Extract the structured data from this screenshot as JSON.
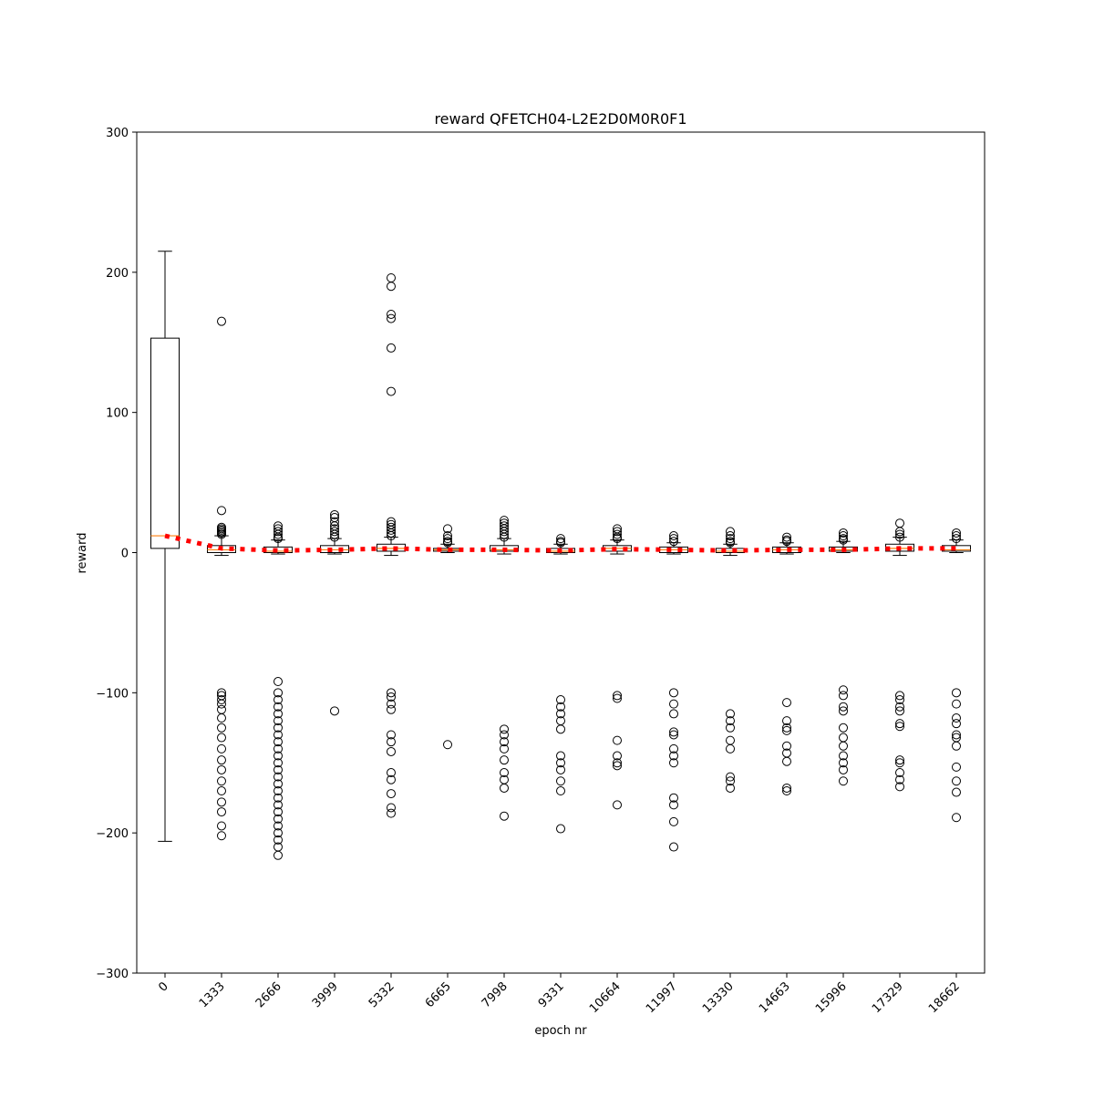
{
  "chart_data": {
    "type": "boxplot",
    "title": "reward QFETCH04-L2E2D0M0R0F1",
    "xlabel": "epoch nr",
    "ylabel": "reward",
    "ylim": [
      -300,
      300
    ],
    "yticks": [
      -300,
      -200,
      -100,
      0,
      100,
      200,
      300
    ],
    "yticklabels": [
      "−300",
      "−200",
      "−100",
      "0",
      "100",
      "200",
      "300"
    ],
    "categories": [
      "0",
      "1333",
      "2666",
      "3999",
      "5332",
      "6665",
      "7998",
      "9331",
      "10664",
      "11997",
      "13330",
      "14663",
      "15996",
      "17329",
      "18662"
    ],
    "grid": false,
    "boxes": [
      {
        "q1": 3,
        "median": 12,
        "q3": 153,
        "whislo": -206,
        "whishi": 215,
        "fliers": []
      },
      {
        "q1": 0,
        "median": 2,
        "q3": 5,
        "whislo": -2,
        "whishi": 12,
        "fliers": [
          165,
          30,
          18,
          17,
          16,
          15,
          14,
          13,
          -100,
          -102,
          -105,
          -108,
          -112,
          -118,
          -125,
          -132,
          -140,
          -148,
          -155,
          -163,
          -170,
          -178,
          -185,
          -195,
          -202
        ]
      },
      {
        "q1": 0,
        "median": 1,
        "q3": 4,
        "whislo": -1,
        "whishi": 9,
        "fliers": [
          19,
          17,
          15,
          13,
          11,
          10,
          -92,
          -100,
          -105,
          -110,
          -115,
          -120,
          -125,
          -130,
          -135,
          -140,
          -145,
          -150,
          -155,
          -160,
          -165,
          -170,
          -175,
          -180,
          -185,
          -190,
          -195,
          -200,
          -205,
          -210,
          -216
        ]
      },
      {
        "q1": 0,
        "median": 2,
        "q3": 5,
        "whislo": -1,
        "whishi": 10,
        "fliers": [
          27,
          25,
          22,
          19,
          17,
          15,
          13,
          11,
          -113
        ]
      },
      {
        "q1": 1,
        "median": 3,
        "q3": 6,
        "whislo": -2,
        "whishi": 11,
        "fliers": [
          196,
          190,
          170,
          167,
          146,
          115,
          22,
          20,
          18,
          16,
          14,
          12,
          -100,
          -103,
          -108,
          -112,
          -130,
          -135,
          -142,
          -157,
          -162,
          -172,
          -182,
          -186
        ]
      },
      {
        "q1": 1,
        "median": 2,
        "q3": 3,
        "whislo": 0,
        "whishi": 6,
        "fliers": [
          17,
          12,
          10,
          8,
          7,
          -137
        ]
      },
      {
        "q1": 1,
        "median": 2,
        "q3": 5,
        "whislo": -1,
        "whishi": 10,
        "fliers": [
          23,
          21,
          19,
          17,
          15,
          13,
          11,
          -126,
          -130,
          -135,
          -140,
          -148,
          -157,
          -162,
          -168,
          -188
        ]
      },
      {
        "q1": 0,
        "median": 1,
        "q3": 3,
        "whislo": -1,
        "whishi": 6,
        "fliers": [
          10,
          8,
          7,
          -105,
          -110,
          -115,
          -120,
          -126,
          -145,
          -150,
          -155,
          -163,
          -170,
          -197
        ]
      },
      {
        "q1": 1,
        "median": 3,
        "q3": 5,
        "whislo": -1,
        "whishi": 9,
        "fliers": [
          17,
          15,
          13,
          11,
          10,
          -102,
          -104,
          -134,
          -145,
          -150,
          -152,
          -180
        ]
      },
      {
        "q1": 0,
        "median": 2,
        "q3": 4,
        "whislo": -1,
        "whishi": 7,
        "fliers": [
          12,
          10,
          8,
          -100,
          -108,
          -115,
          -128,
          -130,
          -140,
          -145,
          -150,
          -175,
          -180,
          -192,
          -210
        ]
      },
      {
        "q1": 0,
        "median": 1,
        "q3": 3,
        "whislo": -2,
        "whishi": 6,
        "fliers": [
          15,
          12,
          10,
          8,
          7,
          -115,
          -120,
          -125,
          -134,
          -140,
          -160,
          -163,
          -168
        ]
      },
      {
        "q1": 0,
        "median": 2,
        "q3": 4,
        "whislo": -1,
        "whishi": 7,
        "fliers": [
          11,
          9,
          8,
          -107,
          -120,
          -125,
          -127,
          -138,
          -143,
          -149,
          -168,
          -170
        ]
      },
      {
        "q1": 1,
        "median": 2,
        "q3": 4,
        "whislo": 0,
        "whishi": 8,
        "fliers": [
          14,
          12,
          10,
          9,
          -98,
          -102,
          -110,
          -113,
          -125,
          -132,
          -138,
          -145,
          -150,
          -155,
          -163
        ]
      },
      {
        "q1": 1,
        "median": 3,
        "q3": 6,
        "whislo": -2,
        "whishi": 11,
        "fliers": [
          21,
          15,
          13,
          11,
          -102,
          -105,
          -110,
          -113,
          -122,
          -124,
          -148,
          -150,
          -157,
          -162,
          -167
        ]
      },
      {
        "q1": 1,
        "median": 2,
        "q3": 5,
        "whislo": 0,
        "whishi": 9,
        "fliers": [
          14,
          12,
          10,
          -100,
          -108,
          -118,
          -122,
          -130,
          -132,
          -138,
          -153,
          -163,
          -171,
          -189
        ]
      }
    ],
    "mean_line": {
      "style": "dotted",
      "color": "#ff0000",
      "values": [
        12,
        3,
        1.5,
        2,
        3,
        2,
        2,
        1.5,
        2.5,
        2,
        1.5,
        2,
        2,
        3,
        3
      ]
    },
    "colors": {
      "median": "#ff7f0e",
      "mean": "#ff0000",
      "box": "#000000"
    }
  }
}
